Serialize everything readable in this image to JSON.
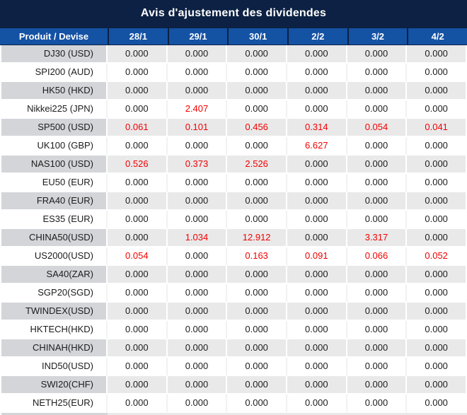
{
  "title": "Avis d'ajustement des dividendes",
  "colors": {
    "title_bg": "#0c2143",
    "header_bg": "#1452a4",
    "gray_label_bg": "#d3d5d9",
    "gray_value_bg": "#e9e9ea",
    "red_value": "#f40000",
    "text": "#1c1c1c"
  },
  "table": {
    "header": [
      "Produit / Devise",
      "28/1",
      "29/1",
      "30/1",
      "2/2",
      "3/2",
      "4/2"
    ],
    "rows": [
      {
        "label": "DJ30 (USD)",
        "values": [
          "0.000",
          "0.000",
          "0.000",
          "0.000",
          "0.000",
          "0.000"
        ],
        "red": [
          false,
          false,
          false,
          false,
          false,
          false
        ]
      },
      {
        "label": "SPI200 (AUD)",
        "values": [
          "0.000",
          "0.000",
          "0.000",
          "0.000",
          "0.000",
          "0.000"
        ],
        "red": [
          false,
          false,
          false,
          false,
          false,
          false
        ]
      },
      {
        "label": "HK50 (HKD)",
        "values": [
          "0.000",
          "0.000",
          "0.000",
          "0.000",
          "0.000",
          "0.000"
        ],
        "red": [
          false,
          false,
          false,
          false,
          false,
          false
        ]
      },
      {
        "label": "Nikkei225 (JPN)",
        "values": [
          "0.000",
          "2.407",
          "0.000",
          "0.000",
          "0.000",
          "0.000"
        ],
        "red": [
          false,
          true,
          false,
          false,
          false,
          false
        ]
      },
      {
        "label": "SP500 (USD)",
        "values": [
          "0.061",
          "0.101",
          "0.456",
          "0.314",
          "0.054",
          "0.041"
        ],
        "red": [
          true,
          true,
          true,
          true,
          true,
          true
        ]
      },
      {
        "label": "UK100 (GBP)",
        "values": [
          "0.000",
          "0.000",
          "0.000",
          "6.627",
          "0.000",
          "0.000"
        ],
        "red": [
          false,
          false,
          false,
          true,
          false,
          false
        ]
      },
      {
        "label": "NAS100 (USD)",
        "values": [
          "0.526",
          "0.373",
          "2.526",
          "0.000",
          "0.000",
          "0.000"
        ],
        "red": [
          true,
          true,
          true,
          false,
          false,
          false
        ]
      },
      {
        "label": "EU50 (EUR)",
        "values": [
          "0.000",
          "0.000",
          "0.000",
          "0.000",
          "0.000",
          "0.000"
        ],
        "red": [
          false,
          false,
          false,
          false,
          false,
          false
        ]
      },
      {
        "label": "FRA40 (EUR)",
        "values": [
          "0.000",
          "0.000",
          "0.000",
          "0.000",
          "0.000",
          "0.000"
        ],
        "red": [
          false,
          false,
          false,
          false,
          false,
          false
        ]
      },
      {
        "label": "ES35 (EUR)",
        "values": [
          "0.000",
          "0.000",
          "0.000",
          "0.000",
          "0.000",
          "0.000"
        ],
        "red": [
          false,
          false,
          false,
          false,
          false,
          false
        ]
      },
      {
        "label": "CHINA50(USD)",
        "values": [
          "0.000",
          "1.034",
          "12.912",
          "0.000",
          "3.317",
          "0.000"
        ],
        "red": [
          false,
          true,
          true,
          false,
          true,
          false
        ]
      },
      {
        "label": "US2000(USD)",
        "values": [
          "0.054",
          "0.000",
          "0.163",
          "0.091",
          "0.066",
          "0.052"
        ],
        "red": [
          true,
          false,
          true,
          true,
          true,
          true
        ]
      },
      {
        "label": "SA40(ZAR)",
        "values": [
          "0.000",
          "0.000",
          "0.000",
          "0.000",
          "0.000",
          "0.000"
        ],
        "red": [
          false,
          false,
          false,
          false,
          false,
          false
        ]
      },
      {
        "label": "SGP20(SGD)",
        "values": [
          "0.000",
          "0.000",
          "0.000",
          "0.000",
          "0.000",
          "0.000"
        ],
        "red": [
          false,
          false,
          false,
          false,
          false,
          false
        ]
      },
      {
        "label": "TWINDEX(USD)",
        "values": [
          "0.000",
          "0.000",
          "0.000",
          "0.000",
          "0.000",
          "0.000"
        ],
        "red": [
          false,
          false,
          false,
          false,
          false,
          false
        ]
      },
      {
        "label": "HKTECH(HKD)",
        "values": [
          "0.000",
          "0.000",
          "0.000",
          "0.000",
          "0.000",
          "0.000"
        ],
        "red": [
          false,
          false,
          false,
          false,
          false,
          false
        ]
      },
      {
        "label": "CHINAH(HKD)",
        "values": [
          "0.000",
          "0.000",
          "0.000",
          "0.000",
          "0.000",
          "0.000"
        ],
        "red": [
          false,
          false,
          false,
          false,
          false,
          false
        ]
      },
      {
        "label": "IND50(USD)",
        "values": [
          "0.000",
          "0.000",
          "0.000",
          "0.000",
          "0.000",
          "0.000"
        ],
        "red": [
          false,
          false,
          false,
          false,
          false,
          false
        ]
      },
      {
        "label": "SWI20(CHF)",
        "values": [
          "0.000",
          "0.000",
          "0.000",
          "0.000",
          "0.000",
          "0.000"
        ],
        "red": [
          false,
          false,
          false,
          false,
          false,
          false
        ]
      },
      {
        "label": "NETH25(EUR)",
        "values": [
          "0.000",
          "0.000",
          "0.000",
          "0.000",
          "0.000",
          "0.000"
        ],
        "red": [
          false,
          false,
          false,
          false,
          false,
          false
        ]
      }
    ]
  }
}
